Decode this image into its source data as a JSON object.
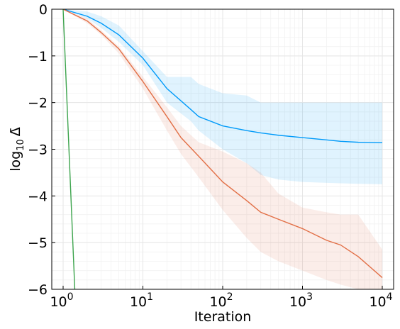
{
  "chart_data": {
    "type": "line",
    "title": "",
    "xlabel": "Iteration",
    "ylabel_prefix": "log",
    "ylabel_sub": "10",
    "ylabel_var": "Δ̄",
    "xscale": "log10",
    "xlim": [
      1,
      10000
    ],
    "ylim": [
      -6,
      0
    ],
    "x_ticks": [
      {
        "base": "10",
        "exp": "0"
      },
      {
        "base": "10",
        "exp": "1"
      },
      {
        "base": "10",
        "exp": "2"
      },
      {
        "base": "10",
        "exp": "3"
      },
      {
        "base": "10",
        "exp": "4"
      }
    ],
    "y_ticks": [
      "0",
      "−1",
      "−2",
      "−3",
      "−4",
      "−5",
      "−6"
    ],
    "grid": true,
    "legend": "none",
    "series": [
      {
        "color": "#009af9",
        "band_color": "#009af9",
        "x": [
          1,
          2,
          3,
          5,
          10,
          20,
          40,
          50,
          100,
          200,
          300,
          500,
          1000,
          2000,
          3000,
          5000,
          10000
        ],
        "y": [
          0,
          -0.15,
          -0.3,
          -0.55,
          -1.05,
          -1.7,
          -2.15,
          -2.3,
          -2.5,
          -2.6,
          -2.65,
          -2.7,
          -2.75,
          -2.8,
          -2.83,
          -2.85,
          -2.86
        ],
        "upper": [
          0,
          -0.05,
          -0.15,
          -0.35,
          -0.9,
          -1.45,
          -1.45,
          -1.6,
          -1.8,
          -1.85,
          -2.0,
          -2.0,
          -2.0,
          -2.0,
          -2.0,
          -2.0,
          -2.0
        ],
        "lower": [
          0,
          -0.2,
          -0.4,
          -0.7,
          -1.2,
          -2.0,
          -2.4,
          -2.6,
          -3.0,
          -3.3,
          -3.55,
          -3.65,
          -3.7,
          -3.72,
          -3.73,
          -3.74,
          -3.75
        ]
      },
      {
        "color": "#e26f46",
        "band_color": "#e26f46",
        "x": [
          1,
          2,
          3,
          5,
          10,
          20,
          30,
          50,
          100,
          200,
          300,
          500,
          1000,
          2000,
          3000,
          5000,
          10000
        ],
        "y": [
          0,
          -0.25,
          -0.5,
          -0.85,
          -1.55,
          -2.3,
          -2.75,
          -3.15,
          -3.7,
          -4.1,
          -4.35,
          -4.5,
          -4.7,
          -4.95,
          -5.05,
          -5.3,
          -5.75
        ],
        "upper": [
          0,
          -0.2,
          -0.45,
          -0.8,
          -1.45,
          -2.1,
          -2.5,
          -2.85,
          -3.05,
          -3.3,
          -3.5,
          -3.95,
          -4.25,
          -4.35,
          -4.4,
          -4.4,
          -5.15
        ],
        "lower": [
          0,
          -0.3,
          -0.55,
          -0.95,
          -1.7,
          -2.6,
          -3.1,
          -3.6,
          -4.3,
          -4.9,
          -5.2,
          -5.4,
          -5.6,
          -5.8,
          -5.9,
          -6.0,
          -6.0
        ]
      },
      {
        "color": "#3da44d",
        "x": [
          1,
          1.4
        ],
        "y": [
          0,
          -6
        ]
      }
    ]
  }
}
